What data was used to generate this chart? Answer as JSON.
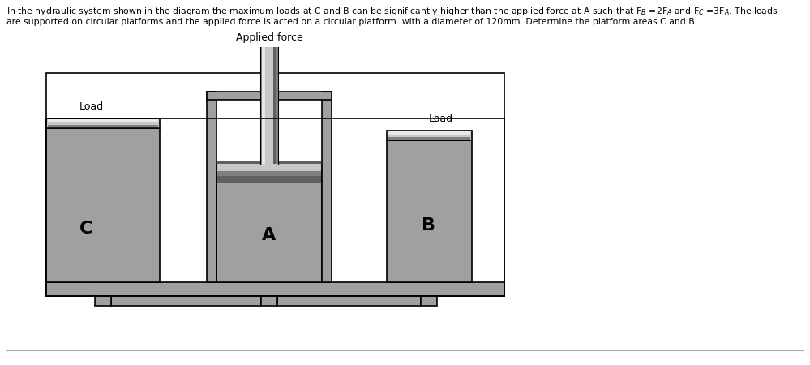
{
  "background_color": "#ffffff",
  "gray_fill": "#a0a0a0",
  "dark_gray": "#606060",
  "mid_gray": "#808080",
  "light_gray": "#c8c8c8",
  "very_light_gray": "#e8e8e8",
  "black": "#000000",
  "white": "#ffffff",
  "C_label": "C",
  "A_label": "A",
  "B_label": "B",
  "load_label": "Load",
  "applied_force_label": "Applied force",
  "title_line1": "In the hydraulic system shown in the diagram the maximum loads at C and B can be significantly higher than the applied force at A such that F",
  "title_line1b": " =2F",
  "title_line1c": " and F",
  "title_line1d": " =3F",
  "title_line1e": ". The loads",
  "title_line2": "are supported on circular platforms and the applied force is acted on a circular platform  with a diameter of 120mm. Determine the platform areas C and B.",
  "lw": 1.2
}
